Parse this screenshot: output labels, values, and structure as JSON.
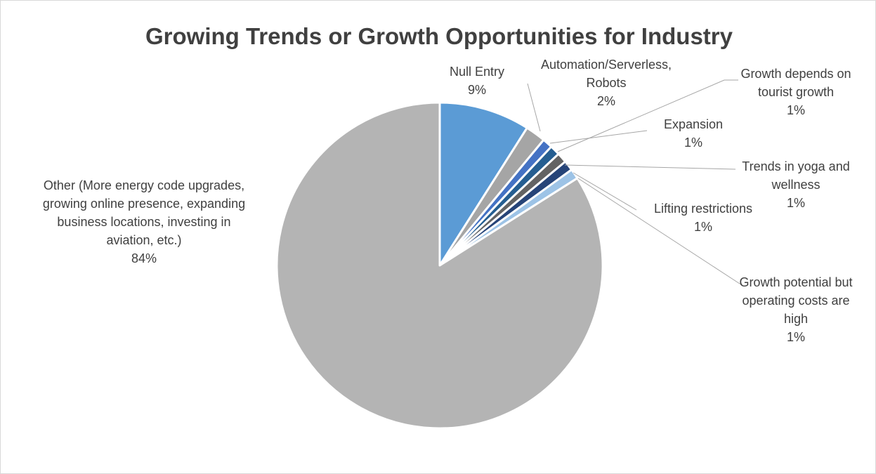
{
  "chart_data": {
    "type": "pie",
    "title": "Growing Trends or Growth Opportunities for Industry",
    "slices": [
      {
        "name": "Null Entry",
        "value": 9,
        "label_lines": [
          "Null Entry"
        ],
        "pct_label": "9%",
        "color": "#5b9bd5"
      },
      {
        "name": "Automation/Serverless, Robots",
        "value": 2,
        "label_lines": [
          "Automation/Serverless,",
          "Robots"
        ],
        "pct_label": "2%",
        "color": "#a5a5a5"
      },
      {
        "name": "Expansion",
        "value": 1,
        "label_lines": [
          "Expansion"
        ],
        "pct_label": "1%",
        "color": "#4472c4"
      },
      {
        "name": "Growth depends on tourist growth",
        "value": 1,
        "label_lines": [
          "Growth depends on",
          "tourist growth"
        ],
        "pct_label": "1%",
        "color": "#255e91"
      },
      {
        "name": "Trends in yoga and wellness",
        "value": 1,
        "label_lines": [
          "Trends in yoga and",
          "wellness"
        ],
        "pct_label": "1%",
        "color": "#636363"
      },
      {
        "name": "Lifting restrictions",
        "value": 1,
        "label_lines": [
          "Lifting restrictions"
        ],
        "pct_label": "1%",
        "color": "#264478"
      },
      {
        "name": "Growth potential but operating costs are high",
        "value": 1,
        "label_lines": [
          "Growth potential but",
          "operating costs are",
          "high"
        ],
        "pct_label": "1%",
        "color": "#9dc3e6"
      },
      {
        "name": "Other (More energy code upgrades, growing online presence, expanding business locations, investing in aviation, etc.)",
        "value": 84,
        "label_lines": [
          "Other (More energy code upgrades,",
          "growing online presence, expanding",
          "business locations, investing in",
          "aviation, etc.)"
        ],
        "pct_label": "84%",
        "color": "#b4b4b4"
      }
    ],
    "legend": "none",
    "label_style": "outside with leader lines"
  }
}
